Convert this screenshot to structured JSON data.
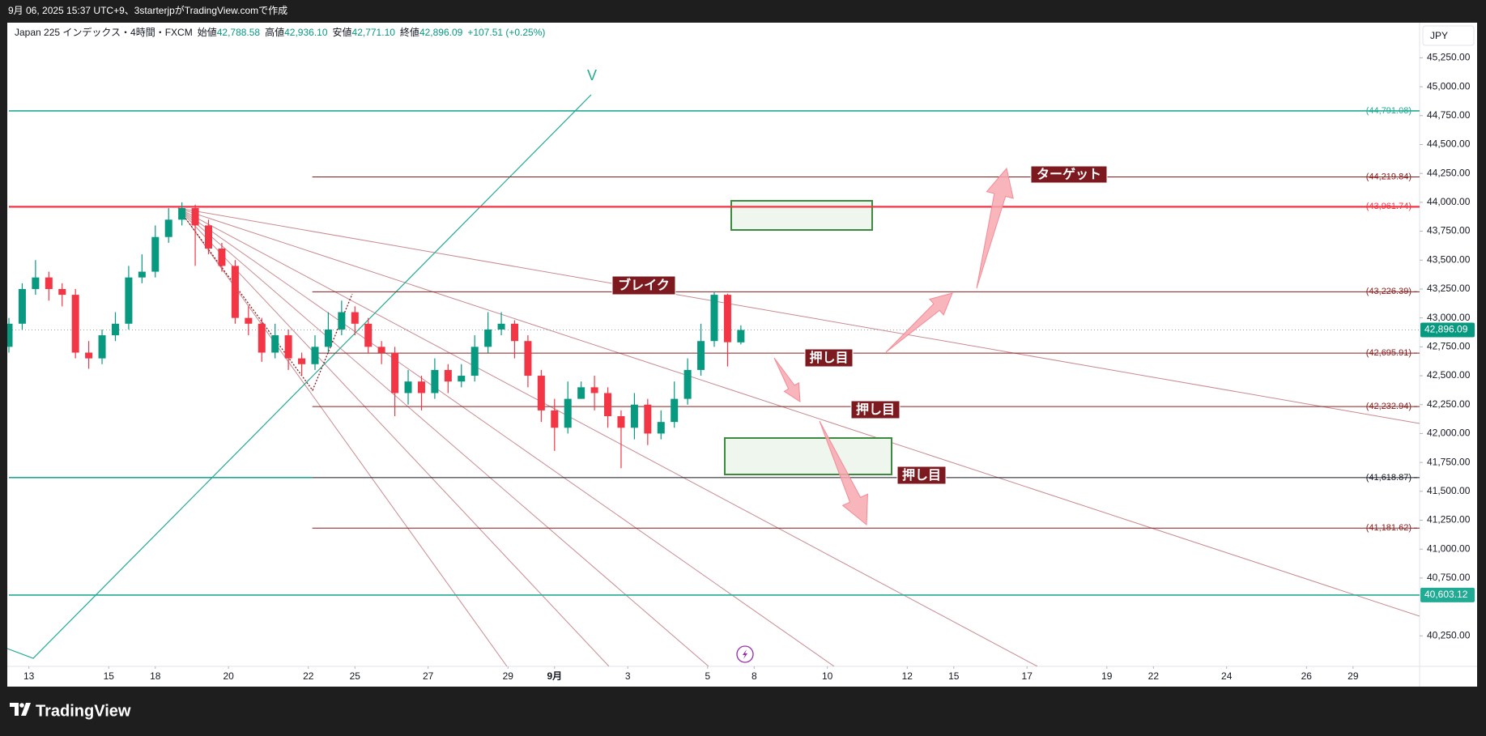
{
  "header": {
    "caption": "9月 06, 2025 15:37 UTC+9、3starterjpがTradingView.comで作成"
  },
  "chart_data": {
    "type": "candlestick",
    "legend": {
      "symbol": "Japan 225 インデックス・4時間・FXCM",
      "items": [
        {
          "label": "始値",
          "value": "42,788.58"
        },
        {
          "label": "高値",
          "value": "42,936.10"
        },
        {
          "label": "安値",
          "value": "42,771.10"
        },
        {
          "label": "終値",
          "value": "42,896.09"
        }
      ],
      "change": "+107.51 (+0.25%)"
    },
    "currency": "JPY",
    "up_color": "#089981",
    "down_color": "#f23645",
    "x": [
      0,
      2,
      4,
      6,
      8,
      10,
      12,
      14,
      16,
      18,
      20,
      22,
      24,
      26,
      28,
      30,
      32,
      34,
      36,
      38,
      40,
      42,
      44,
      46,
      48,
      50,
      52,
      54,
      56,
      58,
      60,
      62,
      64,
      66,
      68,
      70,
      72,
      74,
      76,
      78,
      80,
      82,
      84,
      86,
      88,
      90,
      92,
      94,
      96,
      98,
      100,
      102,
      104,
      106,
      108,
      110
    ],
    "candles": [
      [
        42750,
        43000,
        42700,
        42950
      ],
      [
        42950,
        43300,
        42900,
        43250
      ],
      [
        43250,
        43500,
        43200,
        43350
      ],
      [
        43350,
        43400,
        43150,
        43250
      ],
      [
        43250,
        43300,
        43100,
        43200
      ],
      [
        43200,
        43250,
        42650,
        42700
      ],
      [
        42700,
        42800,
        42560,
        42650
      ],
      [
        42650,
        42900,
        42600,
        42850
      ],
      [
        42850,
        43050,
        42800,
        42950
      ],
      [
        42950,
        43450,
        42900,
        43350
      ],
      [
        43350,
        43550,
        43300,
        43400
      ],
      [
        43400,
        43800,
        43350,
        43700
      ],
      [
        43700,
        43950,
        43650,
        43850
      ],
      [
        43850,
        44000,
        43800,
        43950
      ],
      [
        43950,
        43980,
        43450,
        43800
      ],
      [
        43800,
        43850,
        43550,
        43600
      ],
      [
        43600,
        43650,
        43400,
        43450
      ],
      [
        43450,
        43500,
        42950,
        43000
      ],
      [
        43000,
        43100,
        42850,
        42950
      ],
      [
        42950,
        43000,
        42620,
        42700
      ],
      [
        42700,
        42950,
        42650,
        42850
      ],
      [
        42850,
        42900,
        42550,
        42650
      ],
      [
        42650,
        42700,
        42500,
        42600
      ],
      [
        42600,
        42850,
        42550,
        42750
      ],
      [
        42750,
        43050,
        42700,
        42900
      ],
      [
        42900,
        43150,
        42850,
        43050
      ],
      [
        43050,
        43100,
        42850,
        42950
      ],
      [
        42950,
        43000,
        42700,
        42750
      ],
      [
        42750,
        42800,
        42600,
        42700
      ],
      [
        42700,
        42750,
        42150,
        42350
      ],
      [
        42350,
        42550,
        42250,
        42450
      ],
      [
        42450,
        42500,
        42200,
        42350
      ],
      [
        42350,
        42650,
        42300,
        42550
      ],
      [
        42550,
        42600,
        42350,
        42450
      ],
      [
        42450,
        42600,
        42400,
        42500
      ],
      [
        42500,
        42850,
        42450,
        42750
      ],
      [
        42750,
        43050,
        42700,
        42900
      ],
      [
        42900,
        43050,
        42850,
        42950
      ],
      [
        42950,
        42980,
        42650,
        42800
      ],
      [
        42800,
        42850,
        42400,
        42500
      ],
      [
        42500,
        42550,
        42100,
        42200
      ],
      [
        42200,
        42300,
        41850,
        42050
      ],
      [
        42050,
        42450,
        42000,
        42300
      ],
      [
        42300,
        42450,
        42300,
        42400
      ],
      [
        42400,
        42500,
        42200,
        42350
      ],
      [
        42350,
        42400,
        42050,
        42150
      ],
      [
        42150,
        42200,
        41700,
        42050
      ],
      [
        42050,
        42350,
        41950,
        42250
      ],
      [
        42250,
        42300,
        41900,
        42000
      ],
      [
        42000,
        42200,
        41950,
        42100
      ],
      [
        42100,
        42450,
        42050,
        42300
      ],
      [
        42300,
        42650,
        42250,
        42550
      ],
      [
        42550,
        42950,
        42500,
        42800
      ],
      [
        42800,
        43230,
        42750,
        43200
      ],
      [
        43200,
        43210,
        42580,
        42790
      ],
      [
        42788.58,
        42936.1,
        42771.1,
        42896.09
      ]
    ],
    "xlim": [
      0,
      212
    ],
    "xticks": [
      {
        "value": 3,
        "label": "13"
      },
      {
        "value": 15,
        "label": "15"
      },
      {
        "value": 22,
        "label": "18"
      },
      {
        "value": 33,
        "label": "20"
      },
      {
        "value": 45,
        "label": "22"
      },
      {
        "value": 52,
        "label": "25"
      },
      {
        "value": 63,
        "label": "27"
      },
      {
        "value": 75,
        "label": "29"
      },
      {
        "value": 82,
        "label": "9月"
      },
      {
        "value": 93,
        "label": "3"
      },
      {
        "value": 105,
        "label": "5"
      },
      {
        "value": 112,
        "label": "8"
      },
      {
        "value": 123,
        "label": "10"
      },
      {
        "value": 135,
        "label": "12"
      },
      {
        "value": 142,
        "label": "15"
      },
      {
        "value": 153,
        "label": "17"
      },
      {
        "value": 165,
        "label": "19"
      },
      {
        "value": 172,
        "label": "22"
      },
      {
        "value": 183,
        "label": "24"
      },
      {
        "value": 195,
        "label": "26"
      },
      {
        "value": 202,
        "label": "29"
      }
    ],
    "ylim": [
      39986,
      45554
    ],
    "yticks": [
      {
        "value": 40250,
        "label": "40,250.00"
      },
      {
        "value": 40750,
        "label": "40,750.00"
      },
      {
        "value": 41000,
        "label": "41,000.00"
      },
      {
        "value": 41250,
        "label": "41,250.00"
      },
      {
        "value": 41500,
        "label": "41,500.00"
      },
      {
        "value": 41750,
        "label": "41,750.00"
      },
      {
        "value": 42000,
        "label": "42,000.00"
      },
      {
        "value": 42250,
        "label": "42,250.00"
      },
      {
        "value": 42500,
        "label": "42,500.00"
      },
      {
        "value": 42750,
        "label": "42,750.00"
      },
      {
        "value": 43000,
        "label": "43,000.00"
      },
      {
        "value": 43250,
        "label": "43,250.00"
      },
      {
        "value": 43500,
        "label": "43,500.00"
      },
      {
        "value": 43750,
        "label": "43,750.00"
      },
      {
        "value": 44000,
        "label": "44,000.00"
      },
      {
        "value": 44250,
        "label": "44,250.00"
      },
      {
        "value": 44500,
        "label": "44,500.00"
      },
      {
        "value": 44750,
        "label": "44,750.00"
      },
      {
        "value": 45000,
        "label": "45,000.00"
      },
      {
        "value": 45250,
        "label": "45,250.00"
      }
    ],
    "levels": [
      {
        "value": 44791.08,
        "label": "(44,791.08)",
        "color": "#22ab94",
        "x_start": 0
      },
      {
        "value": 44219.84,
        "label": "(44,219.84)",
        "color": "#8b1c1c",
        "x_start": 45.6
      },
      {
        "value": 43961.74,
        "label": "(43,961.74)",
        "color": "#f23645",
        "x_start": 0
      },
      {
        "value": 43226.39,
        "label": "(43,226.39)",
        "color": "#8b1c1c",
        "x_start": 45.6
      },
      {
        "value": 42695.91,
        "label": "(42,695.91)",
        "color": "#8b1c1c",
        "x_start": 45.6
      },
      {
        "value": 42232.94,
        "label": "(42,232.94)",
        "color": "#8b1c1c",
        "x_start": 45.6
      },
      {
        "value": 41618.87,
        "label": "(41,618.87)",
        "color": "#131722",
        "x_start": 45.6
      },
      {
        "value": 41181.62,
        "label": "(41,181.62)",
        "color": "#8b1c1c",
        "x_start": 45.6
      },
      {
        "value": 40603.12,
        "label": "40,603.12",
        "color": "#22ab94",
        "x_start": 0,
        "boxed": true
      }
    ],
    "last_price": {
      "value": 42896.09,
      "label": "42,896.09",
      "color": "#089981"
    },
    "wave_label": "V",
    "annotations": [
      "ターゲット",
      "ブレイク",
      "押し目",
      "押し目",
      "押し目"
    ]
  },
  "footer": {
    "brand": "TradingView"
  }
}
